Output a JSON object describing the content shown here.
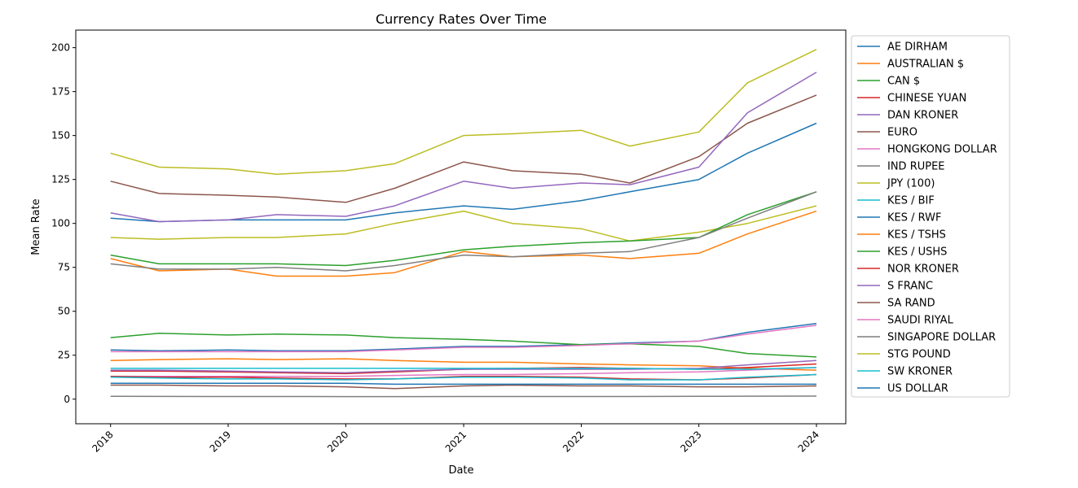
{
  "chart_data": {
    "type": "line",
    "title": "Currency Rates Over Time",
    "xlabel": "Date",
    "ylabel": "Mean Rate",
    "x_ticks": [
      "2018",
      "2019",
      "2020",
      "2021",
      "2022",
      "2023",
      "2024"
    ],
    "y_ticks": [
      0,
      25,
      50,
      75,
      100,
      125,
      150,
      175,
      200
    ],
    "xlim": [
      "2017-09-15",
      "2024-04-01"
    ],
    "ylim": [
      -14,
      210
    ],
    "grid": false,
    "legend_position": "outside right",
    "x_tick_label_rotation": 45,
    "series": [
      {
        "name": "AE DIRHAM",
        "color": "#1f77b4",
        "x": [
          "2018-01",
          "2018-06",
          "2019-01",
          "2019-06",
          "2020-01",
          "2020-06",
          "2021-01",
          "2021-06",
          "2022-01",
          "2022-06",
          "2023-01",
          "2023-06",
          "2024-01"
        ],
        "values": [
          28,
          27.5,
          28,
          27.5,
          27.5,
          28.5,
          30,
          30,
          31,
          32,
          33,
          38,
          43
        ]
      },
      {
        "name": "AUSTRALIAN $",
        "color": "#ff7f0e",
        "x": [
          "2018-01",
          "2018-06",
          "2019-01",
          "2019-06",
          "2020-01",
          "2020-06",
          "2021-01",
          "2021-06",
          "2022-01",
          "2022-06",
          "2023-01",
          "2023-06",
          "2024-01"
        ],
        "values": [
          22,
          22.5,
          23,
          22.5,
          23,
          22,
          21,
          21,
          20,
          19.5,
          19,
          17.5,
          16.5
        ]
      },
      {
        "name": "CAN $",
        "color": "#2ca02c",
        "x": [
          "2018-01",
          "2018-06",
          "2019-01",
          "2019-06",
          "2020-01",
          "2020-06",
          "2021-01",
          "2021-06",
          "2022-01",
          "2022-06",
          "2023-01",
          "2023-06",
          "2024-01"
        ],
        "values": [
          35,
          37.5,
          36.5,
          37,
          36.5,
          35,
          34,
          33,
          31,
          31.5,
          30,
          26,
          24
        ]
      },
      {
        "name": "CHINESE YUAN",
        "color": "#d62728",
        "x": [
          "2018-01",
          "2018-06",
          "2019-01",
          "2019-06",
          "2020-01",
          "2020-06",
          "2021-01",
          "2021-06",
          "2022-01",
          "2022-06",
          "2023-01",
          "2023-06",
          "2024-01"
        ],
        "values": [
          16,
          16,
          15.5,
          15,
          14.5,
          15.5,
          17,
          17.5,
          18,
          17.5,
          17,
          18,
          20
        ]
      },
      {
        "name": "DAN KRONER",
        "color": "#9467bd",
        "x": [
          "2018-01",
          "2018-06",
          "2019-01",
          "2019-06",
          "2020-01",
          "2020-06",
          "2021-01",
          "2021-06",
          "2022-01",
          "2022-06",
          "2023-01",
          "2023-06",
          "2024-01"
        ],
        "values": [
          16.5,
          16.5,
          16,
          15.5,
          15,
          16,
          17,
          17,
          17,
          17,
          17.5,
          19.5,
          22
        ]
      },
      {
        "name": "EURO",
        "color": "#8c564b",
        "x": [
          "2018-01",
          "2018-06",
          "2019-01",
          "2019-06",
          "2020-01",
          "2020-06",
          "2021-01",
          "2021-06",
          "2022-01",
          "2022-06",
          "2023-01",
          "2023-06",
          "2024-01"
        ],
        "values": [
          124,
          117,
          116,
          115,
          112,
          120,
          135,
          130,
          128,
          123,
          138,
          157,
          173
        ]
      },
      {
        "name": "HONGKONG DOLLAR",
        "color": "#e377c2",
        "x": [
          "2018-01",
          "2018-06",
          "2019-01",
          "2019-06",
          "2020-01",
          "2020-06",
          "2021-01",
          "2021-06",
          "2022-01",
          "2022-06",
          "2023-01",
          "2023-06",
          "2024-01"
        ],
        "values": [
          13,
          13,
          13,
          13,
          13,
          13.5,
          14,
          14,
          14.5,
          15,
          15.5,
          16.5,
          18
        ]
      },
      {
        "name": "IND RUPEE",
        "color": "#7f7f7f",
        "x": [
          "2018-01",
          "2018-06",
          "2019-01",
          "2019-06",
          "2020-01",
          "2020-06",
          "2021-01",
          "2021-06",
          "2022-01",
          "2022-06",
          "2023-01",
          "2023-06",
          "2024-01"
        ],
        "values": [
          1.6,
          1.55,
          1.5,
          1.5,
          1.45,
          1.45,
          1.5,
          1.5,
          1.5,
          1.5,
          1.6,
          1.7,
          1.75
        ]
      },
      {
        "name": "JPY (100)",
        "color": "#bcbd22",
        "x": [
          "2018-01",
          "2018-06",
          "2019-01",
          "2019-06",
          "2020-01",
          "2020-06",
          "2021-01",
          "2021-06",
          "2022-01",
          "2022-06",
          "2023-01",
          "2023-06",
          "2024-01"
        ],
        "values": [
          92,
          91,
          92,
          92,
          94,
          100,
          107,
          100,
          97,
          90,
          95,
          100,
          110
        ]
      },
      {
        "name": "KES / BIF",
        "color": "#17becf",
        "x": [
          "2018-01",
          "2018-06",
          "2019-01",
          "2019-06",
          "2020-01",
          "2020-06",
          "2021-01",
          "2021-06",
          "2022-01",
          "2022-06",
          "2023-01",
          "2023-06",
          "2024-01"
        ],
        "values": [
          17.5,
          17.5,
          17.5,
          17.5,
          17.5,
          17.5,
          17.5,
          17.5,
          17.5,
          17.5,
          17,
          17,
          18
        ]
      },
      {
        "name": "KES / RWF",
        "color": "#1f77b4",
        "x": [
          "2018-01",
          "2018-06",
          "2019-01",
          "2019-06",
          "2020-01",
          "2020-06",
          "2021-01",
          "2021-06",
          "2022-01",
          "2022-06",
          "2023-01",
          "2023-06",
          "2024-01"
        ],
        "values": [
          103,
          101,
          102,
          102,
          102,
          106,
          110,
          108,
          113,
          118,
          125,
          140,
          157
        ]
      },
      {
        "name": "KES / TSHS",
        "color": "#ff7f0e",
        "x": [
          "2018-01",
          "2018-06",
          "2019-01",
          "2019-06",
          "2020-01",
          "2020-06",
          "2021-01",
          "2021-06",
          "2022-01",
          "2022-06",
          "2023-01",
          "2023-06",
          "2024-01"
        ],
        "values": [
          80,
          73,
          74,
          70,
          70,
          72,
          84,
          81,
          82,
          80,
          83,
          94,
          107
        ]
      },
      {
        "name": "KES / USHS",
        "color": "#2ca02c",
        "x": [
          "2018-01",
          "2018-06",
          "2019-01",
          "2019-06",
          "2020-01",
          "2020-06",
          "2021-01",
          "2021-06",
          "2022-01",
          "2022-06",
          "2023-01",
          "2023-06",
          "2024-01"
        ],
        "values": [
          82,
          77,
          77,
          77,
          76,
          79,
          85,
          87,
          89,
          90,
          92,
          105,
          118
        ]
      },
      {
        "name": "NOR KRONER",
        "color": "#d62728",
        "x": [
          "2018-01",
          "2018-06",
          "2019-01",
          "2019-06",
          "2020-01",
          "2020-06",
          "2021-01",
          "2021-06",
          "2022-01",
          "2022-06",
          "2023-01",
          "2023-06",
          "2024-01"
        ],
        "values": [
          13,
          12.5,
          12.5,
          12,
          11.5,
          11.5,
          13,
          13,
          12.5,
          11.5,
          11,
          12,
          14
        ]
      },
      {
        "name": "S FRANC",
        "color": "#9467bd",
        "x": [
          "2018-01",
          "2018-06",
          "2019-01",
          "2019-06",
          "2020-01",
          "2020-06",
          "2021-01",
          "2021-06",
          "2022-01",
          "2022-06",
          "2023-01",
          "2023-06",
          "2024-01"
        ],
        "values": [
          106,
          101,
          102,
          105,
          104,
          110,
          124,
          120,
          123,
          122,
          132,
          163,
          186
        ]
      },
      {
        "name": "SA RAND",
        "color": "#8c564b",
        "x": [
          "2018-01",
          "2018-06",
          "2019-01",
          "2019-06",
          "2020-01",
          "2020-06",
          "2021-01",
          "2021-06",
          "2022-01",
          "2022-06",
          "2023-01",
          "2023-06",
          "2024-01"
        ],
        "values": [
          8,
          8,
          7.5,
          7.5,
          7,
          6,
          7.5,
          8,
          7.5,
          7.5,
          7,
          7,
          7.5
        ]
      },
      {
        "name": "SAUDI RIYAL",
        "color": "#e377c2",
        "x": [
          "2018-01",
          "2018-06",
          "2019-01",
          "2019-06",
          "2020-01",
          "2020-06",
          "2021-01",
          "2021-06",
          "2022-01",
          "2022-06",
          "2023-01",
          "2023-06",
          "2024-01"
        ],
        "values": [
          27,
          27,
          27,
          27,
          27,
          28,
          29.5,
          29.5,
          30.5,
          31.5,
          33,
          37,
          42
        ]
      },
      {
        "name": "SINGAPORE DOLLAR",
        "color": "#7f7f7f",
        "x": [
          "2018-01",
          "2018-06",
          "2019-01",
          "2019-06",
          "2020-01",
          "2020-06",
          "2021-01",
          "2021-06",
          "2022-01",
          "2022-06",
          "2023-01",
          "2023-06",
          "2024-01"
        ],
        "values": [
          77,
          74,
          74,
          75,
          73,
          76,
          82,
          81,
          83,
          84,
          92,
          103,
          118
        ]
      },
      {
        "name": "STG POUND",
        "color": "#bcbd22",
        "x": [
          "2018-01",
          "2018-06",
          "2019-01",
          "2019-06",
          "2020-01",
          "2020-06",
          "2021-01",
          "2021-06",
          "2022-01",
          "2022-06",
          "2023-01",
          "2023-06",
          "2024-01"
        ],
        "values": [
          140,
          132,
          131,
          128,
          130,
          134,
          150,
          151,
          153,
          144,
          152,
          180,
          199
        ]
      },
      {
        "name": "SW KRONER",
        "color": "#17becf",
        "x": [
          "2018-01",
          "2018-06",
          "2019-01",
          "2019-06",
          "2020-01",
          "2020-06",
          "2021-01",
          "2021-06",
          "2022-01",
          "2022-06",
          "2023-01",
          "2023-06",
          "2024-01"
        ],
        "values": [
          12.5,
          12,
          11.5,
          11.5,
          11,
          11.5,
          12.5,
          12.5,
          12,
          11,
          11,
          12.5,
          14
        ]
      },
      {
        "name": "US DOLLAR",
        "color": "#1f77b4",
        "x": [
          "2018-01",
          "2018-06",
          "2019-01",
          "2019-06",
          "2020-01",
          "2020-06",
          "2021-01",
          "2021-06",
          "2022-01",
          "2022-06",
          "2023-01",
          "2023-06",
          "2024-01"
        ],
        "values": [
          9,
          9,
          9,
          9,
          9,
          8.5,
          8.5,
          8.5,
          8.5,
          8.5,
          8.5,
          8.5,
          8.5
        ]
      }
    ]
  }
}
